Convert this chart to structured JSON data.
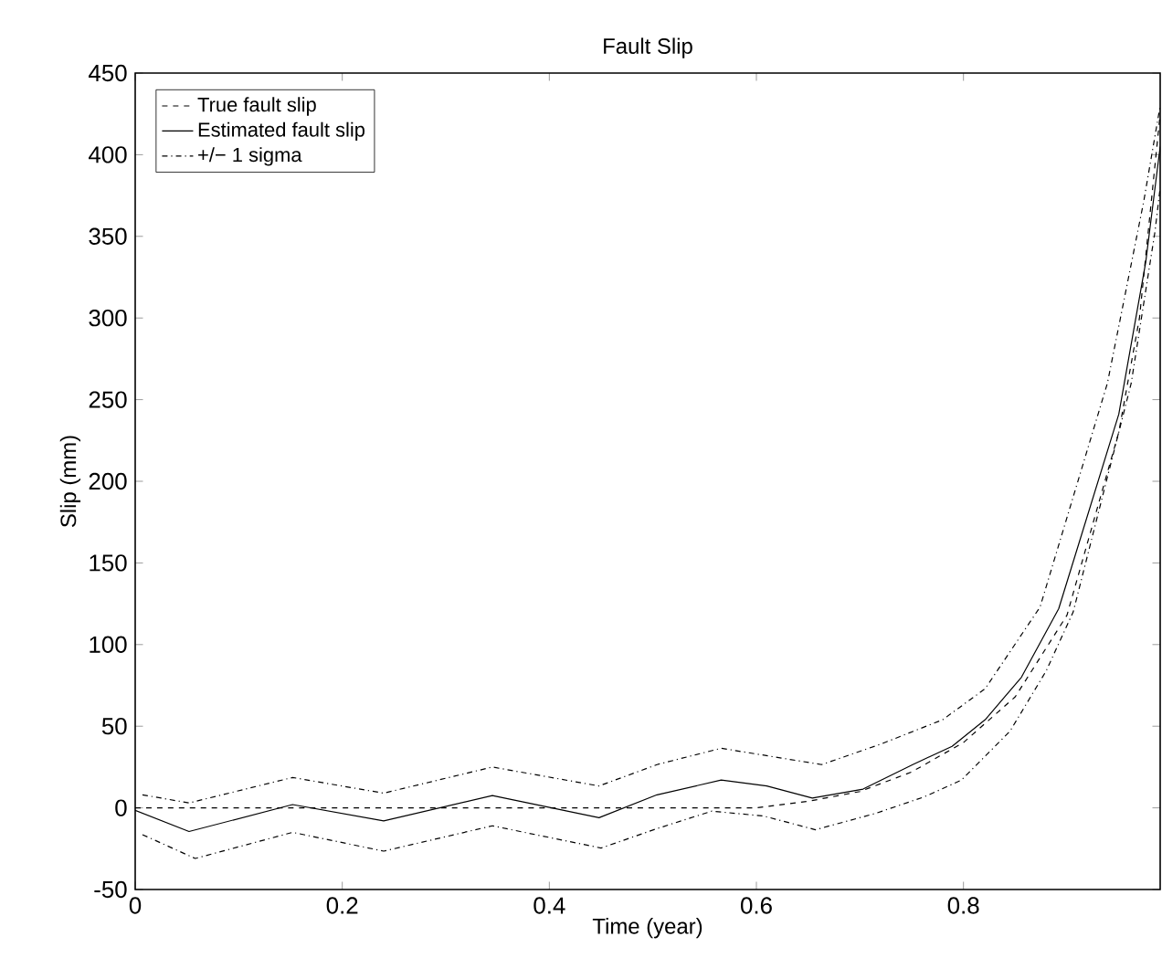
{
  "chart_data": {
    "type": "line",
    "title": "Fault Slip",
    "xlabel": "Time (year)",
    "ylabel": "Slip (mm)",
    "xlim": [
      0,
      0.99
    ],
    "ylim": [
      -50,
      450
    ],
    "xticks": [
      0,
      0.2,
      0.4,
      0.6,
      0.8
    ],
    "yticks": [
      -50,
      0,
      50,
      100,
      150,
      200,
      250,
      300,
      350,
      400,
      450
    ],
    "grid": false,
    "legend": "top left",
    "marker": "none",
    "series": [
      {
        "name": "True fault slip",
        "color": "#000000",
        "line_style": "dashed",
        "x": [
          0,
          0.6,
          0.65,
          0.7,
          0.75,
          0.8,
          0.85,
          0.9,
          0.95,
          0.97,
          0.99
        ],
        "values": [
          0,
          0,
          4,
          10,
          22,
          40,
          68,
          118,
          230,
          300,
          425
        ]
      },
      {
        "name": "Estimated fault slip",
        "color": "#000000",
        "line_style": "solid",
        "x": [
          0,
          0.052,
          0.152,
          0.24,
          0.345,
          0.448,
          0.504,
          0.566,
          0.61,
          0.654,
          0.703,
          0.751,
          0.789,
          0.821,
          0.856,
          0.892,
          0.95,
          0.976,
          0.99
        ],
        "values": [
          -1.5,
          -14.5,
          2,
          -8,
          7.5,
          -6,
          8,
          17,
          13.4,
          6,
          11.5,
          26.5,
          37.7,
          54,
          80,
          122,
          241,
          334,
          405
        ]
      },
      {
        "name": "+/− 1 sigma",
        "color": "#000000",
        "line_style": "dashdot",
        "x": [
          0.007,
          0.052,
          0.152,
          0.24,
          0.345,
          0.448,
          0.504,
          0.566,
          0.663,
          0.72,
          0.78,
          0.821,
          0.874,
          0.939,
          0.974,
          0.99
        ],
        "values": [
          8,
          3,
          18.6,
          9,
          25,
          13.4,
          26.5,
          36.5,
          26.5,
          39,
          54,
          73,
          123,
          260,
          371,
          430
        ]
      },
      {
        "color": "#000000",
        "line_style": "dashdot",
        "x": [
          0.007,
          0.058,
          0.152,
          0.24,
          0.345,
          0.45,
          0.504,
          0.557,
          0.607,
          0.657,
          0.715,
          0.762,
          0.798,
          0.845,
          0.88,
          0.906,
          0.962,
          0.985,
          0.99
        ],
        "values": [
          -16.4,
          -31,
          -15,
          -26.5,
          -11,
          -24.6,
          -12.7,
          -2,
          -5,
          -13.4,
          -3.4,
          6.7,
          17,
          47,
          84,
          120,
          260,
          353,
          380
        ]
      }
    ]
  }
}
